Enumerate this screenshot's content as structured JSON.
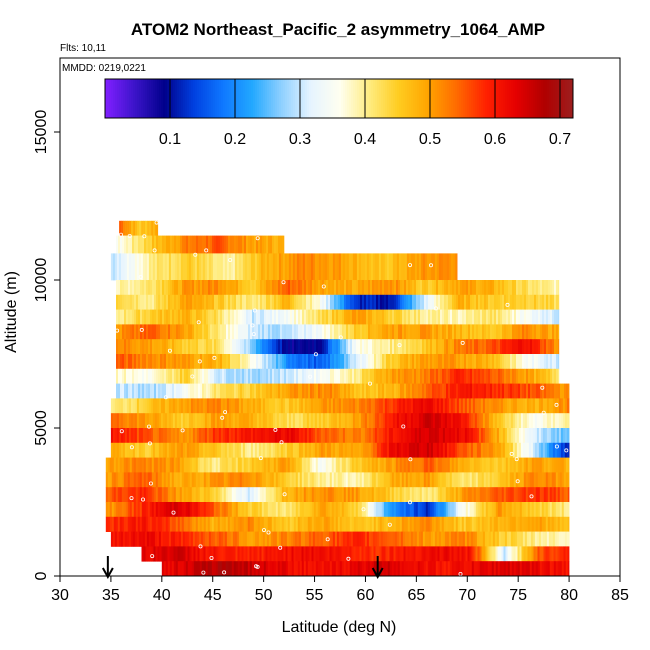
{
  "chart_data": {
    "type": "heatmap",
    "title": "ATOM2 Northeast_Pacific_2 asymmetry_1064_AMP",
    "flights_label": "Flts: 10,11",
    "date_label": "MMDD: 0219,0221",
    "xlabel": "Latitude (deg N)",
    "ylabel": "Altitude (m)",
    "xlim": [
      30,
      85
    ],
    "ylim": [
      0,
      17500
    ],
    "xticks": [
      30,
      35,
      40,
      45,
      50,
      55,
      60,
      65,
      70,
      75,
      80,
      85
    ],
    "yticks": [
      0,
      5000,
      10000,
      15000
    ],
    "colorbar": {
      "min": 0.0,
      "max": 0.72,
      "ticks": [
        0.1,
        0.2,
        0.3,
        0.4,
        0.5,
        0.6,
        0.7
      ],
      "colors": [
        "#7f1fff",
        "#3a14c8",
        "#00008b",
        "#0040e0",
        "#0f78ff",
        "#22a8ff",
        "#8fd0ff",
        "#e6f4ff",
        "#fffff0",
        "#ffec80",
        "#ffcc20",
        "#ffa500",
        "#ff6a00",
        "#ff2000",
        "#e60000",
        "#b00000",
        "#9c1f1f"
      ]
    },
    "arrows_at_latitude": [
      34.7,
      61.2
    ],
    "bands": [
      {
        "alt_lo": 11500,
        "alt_hi": 12000,
        "x_lo": 35.8,
        "x_hi": 39.6,
        "values": [
          0.55,
          0.45,
          0.5
        ]
      },
      {
        "alt_lo": 10900,
        "alt_hi": 11500,
        "x_lo": 35.5,
        "x_hi": 52.0,
        "values": [
          0.35,
          0.45,
          0.52,
          0.55,
          0.5,
          0.48
        ]
      },
      {
        "alt_lo": 10000,
        "alt_hi": 10900,
        "x_lo": 35.0,
        "x_hi": 69.0,
        "values": [
          0.3,
          0.4,
          0.45,
          0.38,
          0.48,
          0.52,
          0.5,
          0.45,
          0.5,
          0.52
        ]
      },
      {
        "alt_lo": 9500,
        "alt_hi": 10000,
        "x_lo": 35.5,
        "x_hi": 79.0,
        "values": [
          0.38,
          0.42,
          0.5,
          0.52,
          0.45,
          0.55,
          0.5,
          0.48,
          0.52,
          0.45,
          0.5,
          0.48,
          0.42,
          0.38
        ]
      },
      {
        "alt_lo": 9000,
        "alt_hi": 9500,
        "x_lo": 35.5,
        "x_hi": 79.0,
        "values": [
          0.45,
          0.4,
          0.5,
          0.45,
          0.4,
          0.48,
          0.35,
          0.12,
          0.1,
          0.3,
          0.48,
          0.45,
          0.45,
          0.42
        ]
      },
      {
        "alt_lo": 8500,
        "alt_hi": 9000,
        "x_lo": 35.5,
        "x_hi": 79.0,
        "values": [
          0.4,
          0.45,
          0.48,
          0.42,
          0.3,
          0.35,
          0.42,
          0.5,
          0.45,
          0.4,
          0.38,
          0.42,
          0.35,
          0.3
        ]
      },
      {
        "alt_lo": 8000,
        "alt_hi": 8500,
        "x_lo": 35.5,
        "x_hi": 79.0,
        "values": [
          0.5,
          0.55,
          0.5,
          0.4,
          0.3,
          0.28,
          0.35,
          0.45,
          0.5,
          0.5,
          0.48,
          0.45,
          0.52,
          0.48
        ]
      },
      {
        "alt_lo": 7500,
        "alt_hi": 8000,
        "x_lo": 35.5,
        "x_hi": 79.0,
        "values": [
          0.52,
          0.5,
          0.45,
          0.42,
          0.25,
          0.08,
          0.1,
          0.35,
          0.4,
          0.45,
          0.52,
          0.55,
          0.62,
          0.5
        ]
      },
      {
        "alt_lo": 7000,
        "alt_hi": 7500,
        "x_lo": 35.5,
        "x_hi": 79.0,
        "values": [
          0.55,
          0.52,
          0.5,
          0.48,
          0.35,
          0.2,
          0.15,
          0.3,
          0.45,
          0.5,
          0.5,
          0.48,
          0.35,
          0.3
        ]
      },
      {
        "alt_lo": 6500,
        "alt_hi": 7000,
        "x_lo": 35.5,
        "x_hi": 79.0,
        "values": [
          0.38,
          0.35,
          0.45,
          0.3,
          0.28,
          0.3,
          0.35,
          0.4,
          0.5,
          0.52,
          0.58,
          0.55,
          0.5,
          0.42
        ]
      },
      {
        "alt_lo": 6000,
        "alt_hi": 6500,
        "x_lo": 35.5,
        "x_hi": 80.0,
        "values": [
          0.3,
          0.28,
          0.35,
          0.42,
          0.45,
          0.5,
          0.52,
          0.45,
          0.48,
          0.55,
          0.6,
          0.58,
          0.55,
          0.5
        ]
      },
      {
        "alt_lo": 5500,
        "alt_hi": 6000,
        "x_lo": 35.0,
        "x_hi": 80.0,
        "values": [
          0.4,
          0.45,
          0.5,
          0.52,
          0.48,
          0.45,
          0.5,
          0.52,
          0.58,
          0.62,
          0.55,
          0.5,
          0.48,
          0.52
        ]
      },
      {
        "alt_lo": 5000,
        "alt_hi": 5500,
        "x_lo": 35.0,
        "x_hi": 80.0,
        "values": [
          0.55,
          0.5,
          0.45,
          0.5,
          0.48,
          0.42,
          0.45,
          0.5,
          0.6,
          0.65,
          0.6,
          0.45,
          0.35,
          0.4
        ]
      },
      {
        "alt_lo": 4500,
        "alt_hi": 5000,
        "x_lo": 35.0,
        "x_hi": 80.0,
        "values": [
          0.6,
          0.55,
          0.5,
          0.58,
          0.6,
          0.62,
          0.55,
          0.52,
          0.6,
          0.65,
          0.62,
          0.48,
          0.3,
          0.25
        ]
      },
      {
        "alt_lo": 4000,
        "alt_hi": 4500,
        "x_lo": 35.0,
        "x_hi": 80.0,
        "values": [
          0.48,
          0.45,
          0.5,
          0.45,
          0.4,
          0.45,
          0.5,
          0.48,
          0.62,
          0.65,
          0.55,
          0.5,
          0.3,
          0.1
        ]
      },
      {
        "alt_lo": 3500,
        "alt_hi": 4000,
        "x_lo": 34.5,
        "x_hi": 80.0,
        "values": [
          0.5,
          0.52,
          0.5,
          0.4,
          0.45,
          0.5,
          0.35,
          0.45,
          0.5,
          0.55,
          0.48,
          0.45,
          0.5,
          0.48
        ]
      },
      {
        "alt_lo": 3000,
        "alt_hi": 3500,
        "x_lo": 34.5,
        "x_hi": 80.0,
        "values": [
          0.5,
          0.55,
          0.48,
          0.5,
          0.52,
          0.45,
          0.4,
          0.38,
          0.48,
          0.5,
          0.4,
          0.45,
          0.52,
          0.5
        ]
      },
      {
        "alt_lo": 2500,
        "alt_hi": 3000,
        "x_lo": 34.5,
        "x_hi": 80.0,
        "values": [
          0.55,
          0.58,
          0.5,
          0.45,
          0.3,
          0.48,
          0.52,
          0.5,
          0.45,
          0.4,
          0.5,
          0.55,
          0.58,
          0.55
        ]
      },
      {
        "alt_lo": 2000,
        "alt_hi": 2500,
        "x_lo": 34.5,
        "x_hi": 80.0,
        "values": [
          0.5,
          0.58,
          0.65,
          0.55,
          0.45,
          0.4,
          0.5,
          0.45,
          0.2,
          0.12,
          0.35,
          0.5,
          0.45,
          0.4
        ]
      },
      {
        "alt_lo": 1500,
        "alt_hi": 2000,
        "x_lo": 34.5,
        "x_hi": 80.0,
        "values": [
          0.58,
          0.6,
          0.55,
          0.48,
          0.52,
          0.45,
          0.5,
          0.45,
          0.48,
          0.52,
          0.45,
          0.48,
          0.5,
          0.45
        ]
      },
      {
        "alt_lo": 1000,
        "alt_hi": 1500,
        "x_lo": 35.0,
        "x_hi": 80.0,
        "values": [
          0.6,
          0.62,
          0.58,
          0.55,
          0.5,
          0.52,
          0.55,
          0.58,
          0.55,
          0.5,
          0.52,
          0.45,
          0.4,
          0.38
        ]
      },
      {
        "alt_lo": 500,
        "alt_hi": 1000,
        "x_lo": 38.0,
        "x_hi": 80.0,
        "values": [
          0.62,
          0.65,
          0.6,
          0.58,
          0.6,
          0.62,
          0.6,
          0.58,
          0.6,
          0.62,
          0.6,
          0.3,
          0.55,
          0.6
        ]
      },
      {
        "alt_lo": 0,
        "alt_hi": 500,
        "x_lo": 40.0,
        "x_hi": 80.0,
        "values": [
          0.62,
          0.65,
          0.68,
          0.65,
          0.62,
          0.6,
          0.62,
          0.65,
          0.62,
          0.6,
          0.62,
          0.64,
          0.62,
          0.6
        ]
      }
    ]
  }
}
